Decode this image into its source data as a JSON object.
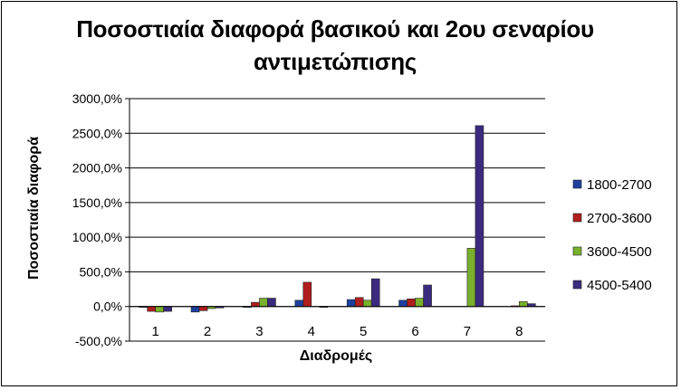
{
  "chart_data": {
    "type": "bar",
    "title_line1": "Ποσοστιαία διαφορά βασικού και 2ου σεναρίου",
    "title_line2": "αντιμετώπισης",
    "xlabel": "Διαδρομές",
    "ylabel": "Ποσοστιαία διαφορά",
    "categories": [
      "1",
      "2",
      "3",
      "4",
      "5",
      "6",
      "7",
      "8"
    ],
    "ylim": [
      -500,
      3000
    ],
    "yticks": [
      {
        "value": 3000,
        "label": "3000,0%"
      },
      {
        "value": 2500,
        "label": "2500,0%"
      },
      {
        "value": 2000,
        "label": "2000,0%"
      },
      {
        "value": 1500,
        "label": "1500,0%"
      },
      {
        "value": 1000,
        "label": "1000,0%"
      },
      {
        "value": 500,
        "label": "500,0%"
      },
      {
        "value": 0,
        "label": "0,0%"
      },
      {
        "value": -500,
        "label": "-500,0%"
      }
    ],
    "grid": true,
    "legend_position": "right",
    "series": [
      {
        "name": "1800-2700",
        "color": "#1f3f9f",
        "values": [
          -10,
          -80,
          -10,
          90,
          100,
          90,
          0,
          0
        ]
      },
      {
        "name": "2700-3600",
        "color": "#b01e1e",
        "values": [
          -70,
          -60,
          60,
          350,
          130,
          110,
          0,
          10
        ]
      },
      {
        "name": "3600-4500",
        "color": "#7ab02c",
        "values": [
          -80,
          -30,
          120,
          0,
          90,
          120,
          840,
          70
        ]
      },
      {
        "name": "4500-5400",
        "color": "#3b2a7e",
        "values": [
          -70,
          -20,
          120,
          -10,
          400,
          310,
          2610,
          40
        ]
      }
    ]
  }
}
